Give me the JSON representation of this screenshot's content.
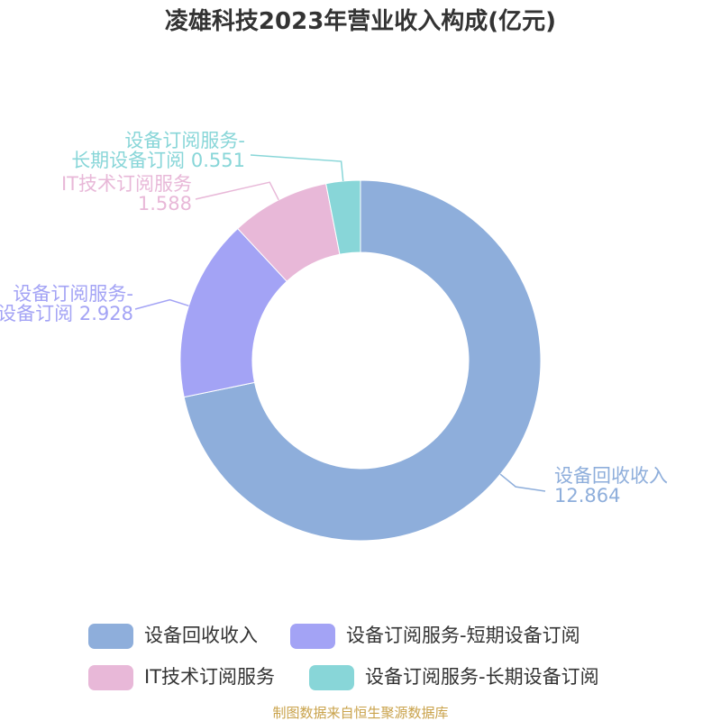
{
  "chart_data": {
    "type": "pie",
    "title": "凌雄科技2023年营业收入构成(亿元)",
    "categories": [
      "设备回收收入",
      "设备订阅服务-短期设备订阅",
      "IT技术订阅服务",
      "设备订阅服务-长期设备订阅"
    ],
    "values": [
      12.864,
      2.928,
      1.588,
      0.551
    ],
    "colors": [
      "#8eaedb",
      "#a3a3f5",
      "#e8b8d8",
      "#88d6d8"
    ],
    "donut": true,
    "legend": "bottom",
    "source": "制图数据来自恒生聚源数据库"
  }
}
